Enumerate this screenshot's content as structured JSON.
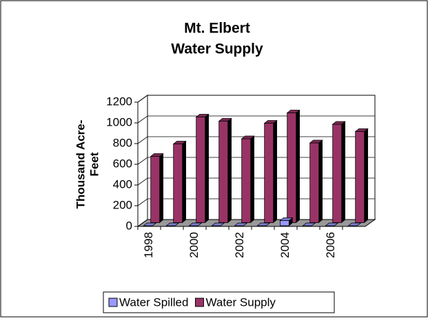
{
  "chart_data": {
    "type": "bar3d",
    "title": [
      "Mt. Elbert",
      "Water Supply"
    ],
    "y_label": [
      "Thousand Acre-",
      "Feet"
    ],
    "categories": [
      "1998",
      null,
      "2000",
      null,
      "2002",
      null,
      "2004",
      null,
      "2006",
      null
    ],
    "series": [
      {
        "name": "Water Spilled",
        "color": "#9999ff",
        "values": [
          0,
          0,
          0,
          0,
          0,
          0,
          50,
          0,
          0,
          0
        ]
      },
      {
        "name": "Water Supply",
        "color": "#993366",
        "values": [
          640,
          760,
          1020,
          980,
          810,
          960,
          1060,
          770,
          950,
          880
        ]
      }
    ],
    "ylim": [
      0,
      1200
    ],
    "yticks": [
      0,
      200,
      400,
      600,
      800,
      1000,
      1200
    ],
    "grid": true
  }
}
